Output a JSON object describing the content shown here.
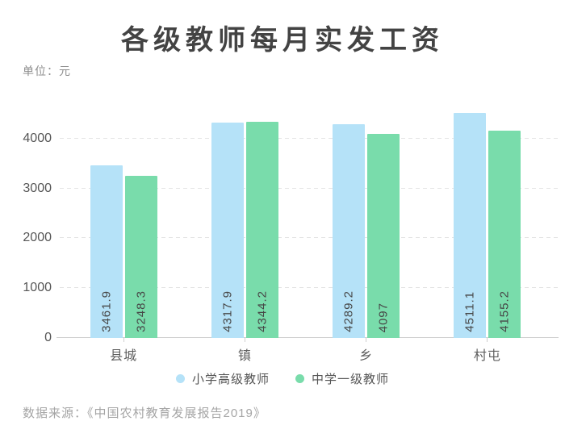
{
  "chart_data": {
    "type": "bar",
    "title": "各级教师每月实发工资",
    "unit_label": "单位：元",
    "categories": [
      "县城",
      "镇",
      "乡",
      "村屯"
    ],
    "series": [
      {
        "name": "小学高级教师",
        "color": "#b5e2f8",
        "values": [
          3461.9,
          4317.9,
          4289.2,
          4511.1
        ]
      },
      {
        "name": "中学一级教师",
        "color": "#79dcab",
        "values": [
          3248.3,
          4344.2,
          4097,
          4155.2
        ]
      }
    ],
    "value_labels": [
      [
        "3461.9",
        "3248.3"
      ],
      [
        "4317.9",
        "4344.2"
      ],
      [
        "4289.2",
        "4097"
      ],
      [
        "4511.1",
        "4155.2"
      ]
    ],
    "yticks": [
      0,
      1000,
      2000,
      3000,
      4000
    ],
    "ylim": [
      0,
      4920
    ],
    "xlabel": "",
    "ylabel": "",
    "grid": "horizontal-dashed",
    "legend_position": "bottom",
    "source": "数据来源：《中国农村教育发展报告2019》"
  },
  "colors": {
    "title_text": "#434343",
    "axis_text": "#5e5e5e",
    "gridline": "#e4e4e4",
    "axis_line": "#cfcfcf",
    "series_blue": "#b5e2f8",
    "series_green": "#79dcab",
    "source_text": "#a5a5a5"
  }
}
